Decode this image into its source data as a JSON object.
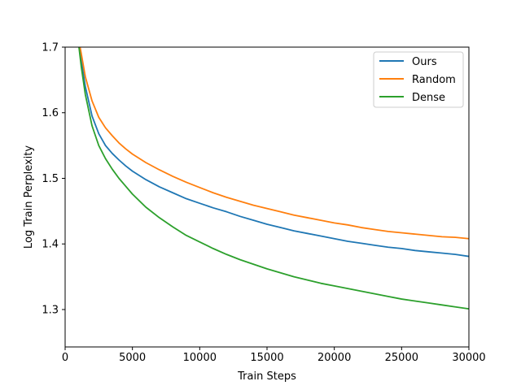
{
  "chart_data": {
    "type": "line",
    "title": "",
    "xlabel": "Train Steps",
    "ylabel": "Log Train Perplexity",
    "xlim": [
      0,
      30000
    ],
    "ylim": [
      1.243,
      1.7
    ],
    "x_ticks": [
      0,
      5000,
      10000,
      15000,
      20000,
      25000,
      30000
    ],
    "x_tick_labels": [
      "0",
      "5000",
      "10000",
      "15000",
      "20000",
      "25000",
      "30000"
    ],
    "y_ticks": [
      1.3,
      1.4,
      1.5,
      1.6,
      1.7
    ],
    "y_tick_labels": [
      "1.3",
      "1.4",
      "1.5",
      "1.6",
      "1.7"
    ],
    "grid": false,
    "legend_position": "top-right",
    "x": [
      1000,
      1200,
      1500,
      2000,
      2500,
      3000,
      3500,
      4000,
      4500,
      5000,
      6000,
      7000,
      8000,
      9000,
      10000,
      11000,
      12000,
      13000,
      14000,
      15000,
      16000,
      17000,
      18000,
      19000,
      20000,
      21000,
      22000,
      23000,
      24000,
      25000,
      26000,
      27000,
      28000,
      29000,
      30000
    ],
    "series": [
      {
        "name": "Ours",
        "color": "#1f77b4",
        "values": [
          1.708,
          1.68,
          1.64,
          1.595,
          1.568,
          1.55,
          1.538,
          1.528,
          1.519,
          1.511,
          1.498,
          1.487,
          1.478,
          1.469,
          1.462,
          1.455,
          1.449,
          1.442,
          1.436,
          1.43,
          1.425,
          1.42,
          1.416,
          1.412,
          1.408,
          1.404,
          1.401,
          1.398,
          1.395,
          1.393,
          1.39,
          1.388,
          1.386,
          1.384,
          1.381
        ]
      },
      {
        "name": "Random",
        "color": "#ff7f0e",
        "values": [
          1.712,
          1.69,
          1.655,
          1.618,
          1.593,
          1.577,
          1.565,
          1.554,
          1.545,
          1.537,
          1.524,
          1.513,
          1.503,
          1.494,
          1.486,
          1.478,
          1.471,
          1.465,
          1.459,
          1.454,
          1.449,
          1.444,
          1.44,
          1.436,
          1.432,
          1.429,
          1.425,
          1.422,
          1.419,
          1.417,
          1.415,
          1.413,
          1.411,
          1.41,
          1.408
        ]
      },
      {
        "name": "Dense",
        "color": "#2ca02c",
        "values": [
          1.705,
          1.67,
          1.628,
          1.58,
          1.55,
          1.53,
          1.514,
          1.5,
          1.488,
          1.476,
          1.456,
          1.44,
          1.426,
          1.413,
          1.403,
          1.393,
          1.384,
          1.376,
          1.369,
          1.362,
          1.356,
          1.35,
          1.345,
          1.34,
          1.336,
          1.332,
          1.328,
          1.324,
          1.32,
          1.316,
          1.313,
          1.31,
          1.307,
          1.304,
          1.301
        ]
      }
    ]
  }
}
